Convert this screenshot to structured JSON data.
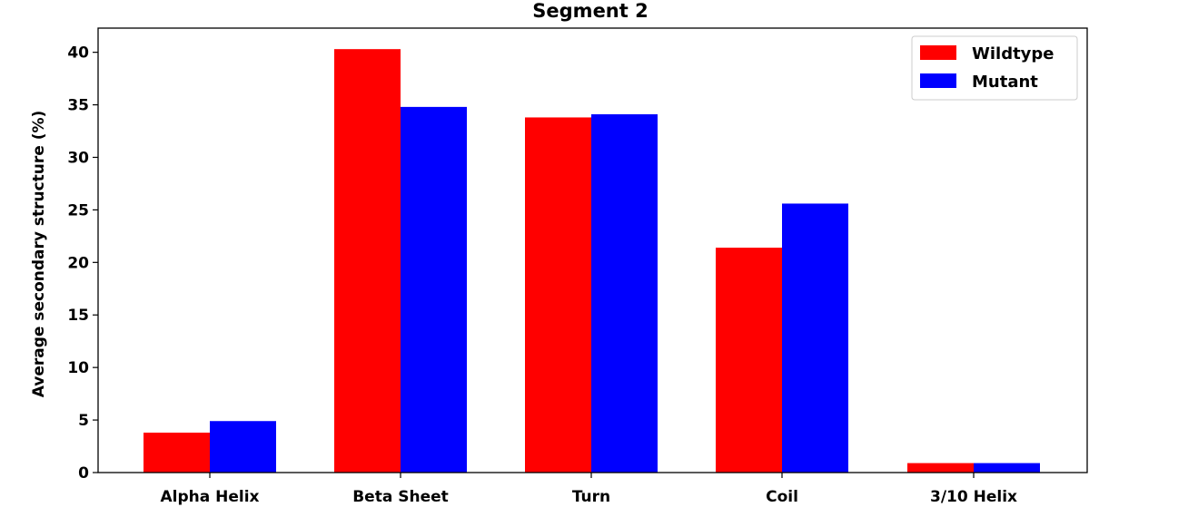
{
  "chart_data": {
    "type": "bar",
    "title": "Segment 2",
    "xlabel": "",
    "ylabel": "Average secondary structure (%)",
    "categories": [
      "Alpha Helix",
      "Beta Sheet",
      "Turn",
      "Coil",
      "3/10 Helix"
    ],
    "series": [
      {
        "name": "Wildtype",
        "color": "#ff0000",
        "values": [
          3.8,
          40.3,
          33.8,
          21.4,
          0.9
        ]
      },
      {
        "name": "Mutant",
        "color": "#0000ff",
        "values": [
          4.9,
          34.8,
          34.1,
          25.6,
          0.9
        ]
      }
    ],
    "ylim": [
      0,
      42.3
    ],
    "yticks": [
      0,
      5,
      10,
      15,
      20,
      25,
      30,
      35,
      40
    ],
    "grid": false,
    "legend": "top-right"
  }
}
